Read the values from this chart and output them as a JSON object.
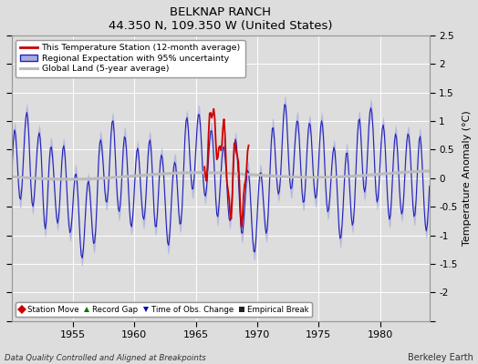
{
  "title": "BELKNAP RANCH",
  "subtitle": "44.350 N, 109.350 W (United States)",
  "ylabel": "Temperature Anomaly (°C)",
  "xlabel_bottom": "Data Quality Controlled and Aligned at Breakpoints",
  "xlabel_right": "Berkeley Earth",
  "ylim": [
    -2.5,
    2.5
  ],
  "xlim": [
    1950,
    1984
  ],
  "yticks": [
    -2.5,
    -2,
    -1.5,
    -1,
    -0.5,
    0,
    0.5,
    1,
    1.5,
    2,
    2.5
  ],
  "xticks": [
    1955,
    1960,
    1965,
    1970,
    1975,
    1980
  ],
  "bg_color": "#dddddd",
  "plot_bg": "#dddddd",
  "regional_color": "#2222bb",
  "regional_fill_color": "#aaaadd",
  "station_color": "#cc0000",
  "global_color": "#bbbbbb",
  "legend_items": [
    "This Temperature Station (12-month average)",
    "Regional Expectation with 95% uncertainty",
    "Global Land (5-year average)"
  ],
  "marker_legend": [
    {
      "symbol": "D",
      "color": "#cc0000",
      "label": "Station Move"
    },
    {
      "symbol": "^",
      "color": "#007700",
      "label": "Record Gap"
    },
    {
      "symbol": "v",
      "color": "#0000bb",
      "label": "Time of Obs. Change"
    },
    {
      "symbol": "s",
      "color": "#222222",
      "label": "Empirical Break"
    }
  ]
}
